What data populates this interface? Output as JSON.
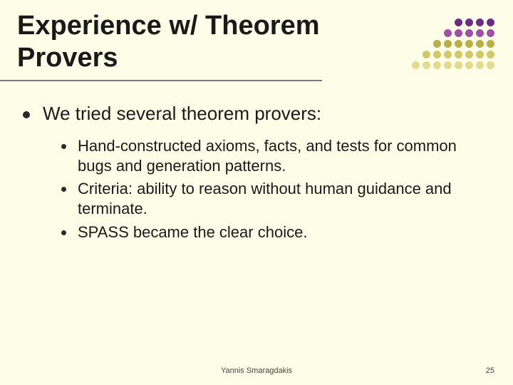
{
  "title": "Experience w/ Theorem Provers",
  "main_point": "We tried several theorem provers:",
  "sub_points": [
    "Hand-constructed axioms, facts, and tests for common bugs and generation patterns.",
    "Criteria: ability to reason without human guidance and terminate.",
    "SPASS became the clear choice."
  ],
  "footer_author": "Yannis Smaragdakis",
  "page_number": "25",
  "colors": {
    "background": "#fdfde8",
    "text": "#1a1a1a",
    "underline": "#7a7a7a"
  },
  "dot_grid": {
    "rows": [
      {
        "count": 4,
        "color": "#6b2d84"
      },
      {
        "count": 5,
        "color": "#a04ea8"
      },
      {
        "count": 6,
        "color": "#b7b04a"
      },
      {
        "count": 7,
        "color": "#d0c96a"
      },
      {
        "count": 8,
        "color": "#e2db8f"
      }
    ],
    "dot_size": 11,
    "gap": 4
  },
  "typography": {
    "title_fontsize": 38,
    "l1_fontsize": 26,
    "l2_fontsize": 22,
    "footer_fontsize": 11
  }
}
